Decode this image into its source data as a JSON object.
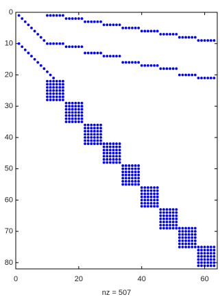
{
  "chart_data": {
    "type": "scatter",
    "xlabel": "nz = 507",
    "color": "#0000ff",
    "y_reversed": true,
    "xlim": [
      0,
      64
    ],
    "ylim": [
      0,
      82
    ],
    "xticks": [
      0,
      20,
      40,
      60
    ],
    "yticks": [
      0,
      10,
      20,
      30,
      40,
      50,
      60,
      70,
      80
    ],
    "x": [
      1,
      2,
      3,
      4,
      5,
      6,
      7,
      8,
      9,
      10,
      11,
      12,
      13,
      14,
      15,
      16,
      17,
      18,
      19,
      20,
      21,
      22,
      23,
      24,
      25,
      26,
      27,
      28,
      29,
      30,
      31,
      32,
      33,
      34,
      35,
      36,
      37,
      38,
      39,
      40,
      41,
      42,
      43,
      44,
      45,
      46,
      47,
      48,
      49,
      50,
      51,
      52,
      53,
      54,
      55,
      56,
      57,
      58,
      59,
      60,
      61,
      62,
      63,
      1,
      2,
      3,
      4,
      5,
      6,
      7,
      8,
      9,
      10,
      11,
      12,
      10,
      11,
      12,
      13,
      14,
      15,
      16,
      17,
      18,
      19,
      20,
      21,
      22,
      23,
      24,
      25,
      26,
      27,
      28,
      29,
      30,
      31,
      32,
      33,
      34,
      35,
      36,
      37,
      38,
      39,
      40,
      41,
      42,
      43,
      44,
      45,
      46,
      47,
      48,
      49,
      50,
      51,
      52,
      53,
      54,
      55,
      56,
      57,
      58,
      59,
      60,
      61,
      62,
      63,
      10,
      11,
      12,
      13,
      14,
      15,
      10,
      11,
      12,
      13,
      14,
      15,
      10,
      11,
      12,
      13,
      14,
      15,
      10,
      11,
      12,
      13,
      14,
      15,
      10,
      11,
      12,
      13,
      14,
      15,
      10,
      11,
      12,
      13,
      14,
      15,
      10,
      11,
      12,
      13,
      14,
      15,
      16,
      17,
      18,
      19,
      20,
      21,
      16,
      17,
      18,
      19,
      20,
      21,
      16,
      17,
      18,
      19,
      20,
      21,
      16,
      17,
      18,
      19,
      20,
      21,
      16,
      17,
      18,
      19,
      20,
      21,
      16,
      17,
      18,
      19,
      20,
      21,
      16,
      17,
      18,
      19,
      20,
      21,
      22,
      23,
      24,
      25,
      26,
      27,
      22,
      23,
      24,
      25,
      26,
      27,
      22,
      23,
      24,
      25,
      26,
      27,
      22,
      23,
      24,
      25,
      26,
      27,
      22,
      23,
      24,
      25,
      26,
      27,
      22,
      23,
      24,
      25,
      26,
      27,
      22,
      23,
      24,
      25,
      26,
      27,
      28,
      29,
      30,
      31,
      32,
      33,
      28,
      29,
      30,
      31,
      32,
      33,
      28,
      29,
      30,
      31,
      32,
      33,
      28,
      29,
      30,
      31,
      32,
      33,
      28,
      29,
      30,
      31,
      32,
      33,
      28,
      29,
      30,
      31,
      32,
      33,
      28,
      29,
      30,
      31,
      32,
      33,
      34,
      35,
      36,
      37,
      38,
      39,
      34,
      35,
      36,
      37,
      38,
      39,
      34,
      35,
      36,
      37,
      38,
      39,
      34,
      35,
      36,
      37,
      38,
      39,
      34,
      35,
      36,
      37,
      38,
      39,
      34,
      35,
      36,
      37,
      38,
      39,
      34,
      35,
      36,
      37,
      38,
      39,
      40,
      41,
      42,
      43,
      44,
      45,
      40,
      41,
      42,
      43,
      44,
      45,
      40,
      41,
      42,
      43,
      44,
      45,
      40,
      41,
      42,
      43,
      44,
      45,
      40,
      41,
      42,
      43,
      44,
      45,
      40,
      41,
      42,
      43,
      44,
      45,
      40,
      41,
      42,
      43,
      44,
      45,
      46,
      47,
      48,
      49,
      50,
      51,
      46,
      47,
      48,
      49,
      50,
      51,
      46,
      47,
      48,
      49,
      50,
      51,
      46,
      47,
      48,
      49,
      50,
      51,
      46,
      47,
      48,
      49,
      50,
      51,
      46,
      47,
      48,
      49,
      50,
      51,
      46,
      47,
      48,
      49,
      50,
      51,
      52,
      53,
      54,
      55,
      56,
      57,
      52,
      53,
      54,
      55,
      56,
      57,
      52,
      53,
      54,
      55,
      56,
      57,
      52,
      53,
      54,
      55,
      56,
      57,
      52,
      53,
      54,
      55,
      56,
      57,
      52,
      53,
      54,
      55,
      56,
      57,
      52,
      53,
      54,
      55,
      56,
      57,
      58,
      59,
      60,
      61,
      62,
      63,
      58,
      59,
      60,
      61,
      62,
      63,
      58,
      59,
      60,
      61,
      62,
      63,
      58,
      59,
      60,
      61,
      62,
      63,
      58,
      59,
      60,
      61,
      62,
      63,
      58,
      59,
      60,
      61,
      62,
      63,
      58,
      59,
      60,
      61,
      62,
      63
    ],
    "y": [
      1,
      2,
      3,
      4,
      5,
      6,
      7,
      8,
      9,
      1,
      1,
      1,
      1,
      1,
      1,
      2,
      2,
      2,
      2,
      2,
      2,
      3,
      3,
      3,
      3,
      3,
      3,
      4,
      4,
      4,
      4,
      4,
      4,
      5,
      5,
      5,
      5,
      5,
      5,
      6,
      6,
      6,
      6,
      6,
      6,
      7,
      7,
      7,
      7,
      7,
      7,
      8,
      8,
      8,
      8,
      8,
      8,
      9,
      9,
      9,
      9,
      9,
      9,
      10,
      11,
      12,
      13,
      14,
      15,
      16,
      17,
      18,
      19,
      20,
      21,
      10,
      10,
      10,
      10,
      10,
      10,
      11,
      11,
      11,
      11,
      11,
      11,
      13,
      13,
      13,
      13,
      13,
      13,
      14,
      14,
      14,
      14,
      14,
      14,
      16,
      16,
      16,
      16,
      16,
      16,
      17,
      17,
      17,
      17,
      17,
      17,
      18,
      18,
      18,
      18,
      18,
      18,
      20,
      20,
      20,
      20,
      20,
      20,
      21,
      21,
      21,
      21,
      21,
      21,
      22,
      22,
      22,
      22,
      22,
      22,
      23,
      23,
      23,
      23,
      23,
      23,
      24,
      24,
      24,
      24,
      24,
      24,
      25,
      25,
      25,
      25,
      25,
      25,
      26,
      26,
      26,
      26,
      26,
      26,
      27,
      27,
      27,
      27,
      27,
      27,
      28,
      28,
      28,
      28,
      28,
      28,
      29,
      29,
      29,
      29,
      29,
      29,
      30,
      30,
      30,
      30,
      30,
      30,
      31,
      31,
      31,
      31,
      31,
      31,
      32,
      32,
      32,
      32,
      32,
      32,
      33,
      33,
      33,
      33,
      33,
      33,
      34,
      34,
      34,
      34,
      34,
      34,
      35,
      35,
      35,
      35,
      35,
      35,
      36,
      36,
      36,
      36,
      36,
      36,
      37,
      37,
      37,
      37,
      37,
      37,
      38,
      38,
      38,
      38,
      38,
      38,
      39,
      39,
      39,
      39,
      39,
      39,
      40,
      40,
      40,
      40,
      40,
      40,
      41,
      41,
      41,
      41,
      41,
      41,
      42,
      42,
      42,
      42,
      42,
      42,
      42,
      42,
      42,
      42,
      42,
      42,
      43,
      43,
      43,
      43,
      43,
      43,
      44,
      44,
      44,
      44,
      44,
      44,
      45,
      45,
      45,
      45,
      45,
      45,
      46,
      46,
      46,
      46,
      46,
      46,
      47,
      47,
      47,
      47,
      47,
      47,
      48,
      48,
      48,
      48,
      48,
      48,
      49,
      49,
      49,
      49,
      49,
      49,
      50,
      50,
      50,
      50,
      50,
      50,
      51,
      51,
      51,
      51,
      51,
      51,
      52,
      52,
      52,
      52,
      52,
      52,
      53,
      53,
      53,
      53,
      53,
      53,
      54,
      54,
      54,
      54,
      54,
      54,
      55,
      55,
      55,
      55,
      55,
      55,
      56,
      56,
      56,
      56,
      56,
      56,
      57,
      57,
      57,
      57,
      57,
      57,
      58,
      58,
      58,
      58,
      58,
      58,
      59,
      59,
      59,
      59,
      59,
      59,
      60,
      60,
      60,
      60,
      60,
      60,
      61,
      61,
      61,
      61,
      61,
      61,
      62,
      62,
      62,
      62,
      62,
      62,
      63,
      63,
      63,
      63,
      63,
      63,
      64,
      64,
      64,
      64,
      64,
      64,
      65,
      65,
      65,
      65,
      65,
      65,
      66,
      66,
      66,
      66,
      66,
      66,
      67,
      67,
      67,
      67,
      67,
      67,
      68,
      68,
      68,
      68,
      68,
      68,
      69,
      69,
      69,
      69,
      69,
      69,
      69,
      69,
      69,
      69,
      69,
      69,
      70,
      70,
      70,
      70,
      70,
      70,
      71,
      71,
      71,
      71,
      71,
      71,
      72,
      72,
      72,
      72,
      72,
      72,
      73,
      73,
      73,
      73,
      73,
      73,
      74,
      74,
      74,
      74,
      74,
      74,
      75,
      75,
      75,
      75,
      75,
      75,
      75,
      75,
      75,
      75,
      75,
      75,
      76,
      76,
      76,
      76,
      76,
      76,
      77,
      77,
      77,
      77,
      77,
      77,
      78,
      78,
      78,
      78,
      78,
      78,
      79,
      79,
      79,
      79,
      79,
      79,
      80,
      80,
      80,
      80,
      80,
      80,
      81,
      81,
      81,
      81,
      81,
      81
    ]
  }
}
